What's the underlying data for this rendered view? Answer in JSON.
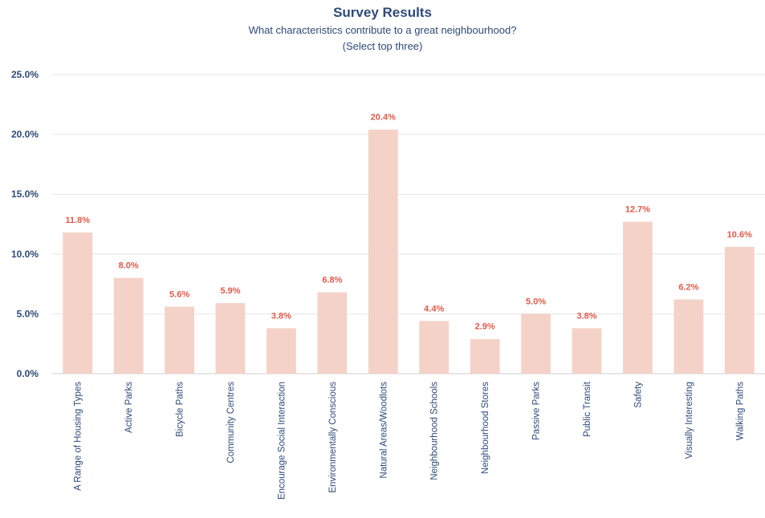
{
  "chart_data": {
    "type": "bar",
    "title": "Survey Results",
    "subtitle": "What characteristics contribute to a great neighbourhood?",
    "subtitle2": "(Select top three)",
    "categories": [
      "A Range of Housing Types",
      "Active Parks",
      "Bicycle Paths",
      "Community Centres",
      "Encourage Social Interaction",
      "Environmentally Conscious",
      "Natural Areas/Woodlots",
      "Neighbourhood Schools",
      "Neighbourhood Stores",
      "Passive Parks",
      "Public Transit",
      "Safety",
      "Visually Interesting",
      "Walking Paths"
    ],
    "values": [
      11.8,
      8.0,
      5.6,
      5.9,
      3.8,
      6.8,
      20.4,
      4.4,
      2.9,
      5.0,
      3.8,
      12.7,
      6.2,
      10.6
    ],
    "value_labels": [
      "11.8%",
      "8.0%",
      "5.6%",
      "5.9%",
      "3.8%",
      "6.8%",
      "20.4%",
      "4.4%",
      "2.9%",
      "5.0%",
      "3.8%",
      "12.7%",
      "6.2%",
      "10.6%"
    ],
    "yticks": [
      0,
      5,
      10,
      15,
      20,
      25
    ],
    "ytick_labels": [
      "0.0%",
      "5.0%",
      "10.0%",
      "15.0%",
      "20.0%",
      "25.0%"
    ],
    "ylim": [
      0,
      25
    ],
    "grid": true,
    "legend": "none",
    "colors": {
      "bar": "#f4d2c8",
      "data_label": "#e05a4a",
      "text": "#2e4a78",
      "grid": "#e6e6e6"
    }
  }
}
